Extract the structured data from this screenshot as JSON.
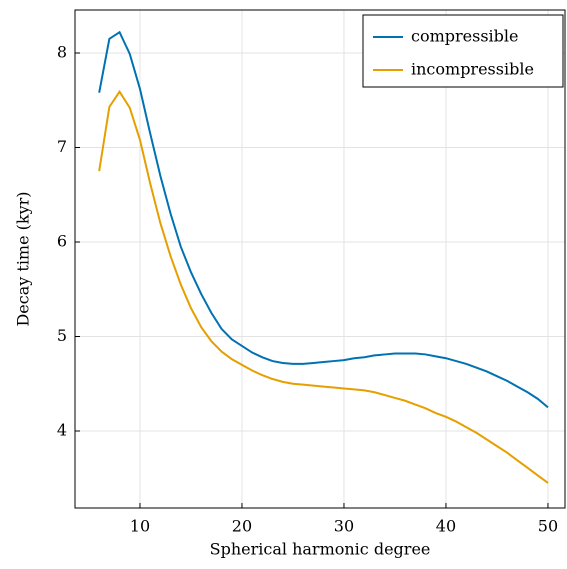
{
  "chart_data": {
    "type": "line",
    "xlabel": "Spherical harmonic degree",
    "ylabel": "Decay time (kyr)",
    "x": [
      6,
      7,
      8,
      9,
      10,
      11,
      12,
      13,
      14,
      15,
      16,
      17,
      18,
      19,
      20,
      21,
      22,
      23,
      24,
      25,
      26,
      27,
      28,
      29,
      30,
      31,
      32,
      33,
      34,
      35,
      36,
      37,
      38,
      39,
      40,
      41,
      42,
      43,
      44,
      45,
      46,
      47,
      48,
      49,
      50
    ],
    "series": [
      {
        "name": "compressible",
        "color": "#0072b2",
        "values": [
          7.58,
          8.15,
          8.22,
          7.99,
          7.62,
          7.15,
          6.7,
          6.3,
          5.95,
          5.68,
          5.45,
          5.25,
          5.08,
          4.97,
          4.9,
          4.83,
          4.78,
          4.74,
          4.72,
          4.71,
          4.71,
          4.72,
          4.73,
          4.74,
          4.75,
          4.77,
          4.78,
          4.8,
          4.81,
          4.82,
          4.82,
          4.82,
          4.81,
          4.79,
          4.77,
          4.74,
          4.71,
          4.67,
          4.63,
          4.58,
          4.53,
          4.47,
          4.41,
          4.34,
          4.25
        ]
      },
      {
        "name": "incompressible",
        "color": "#e69f00",
        "values": [
          6.75,
          7.43,
          7.59,
          7.42,
          7.08,
          6.62,
          6.2,
          5.85,
          5.55,
          5.3,
          5.1,
          4.95,
          4.84,
          4.76,
          4.7,
          4.64,
          4.59,
          4.55,
          4.52,
          4.5,
          4.49,
          4.48,
          4.47,
          4.46,
          4.45,
          4.44,
          4.43,
          4.41,
          4.38,
          4.35,
          4.32,
          4.28,
          4.24,
          4.19,
          4.15,
          4.1,
          4.04,
          3.98,
          3.91,
          3.84,
          3.77,
          3.69,
          3.61,
          3.53,
          3.45
        ]
      }
    ],
    "xlim": [
      3.63,
      51.67
    ],
    "ylim": [
      3.185,
      8.455
    ],
    "xticks": [
      10,
      20,
      30,
      40,
      50
    ],
    "yticks": [
      4,
      5,
      6,
      7,
      8
    ],
    "grid": true,
    "legend": "upper right"
  }
}
